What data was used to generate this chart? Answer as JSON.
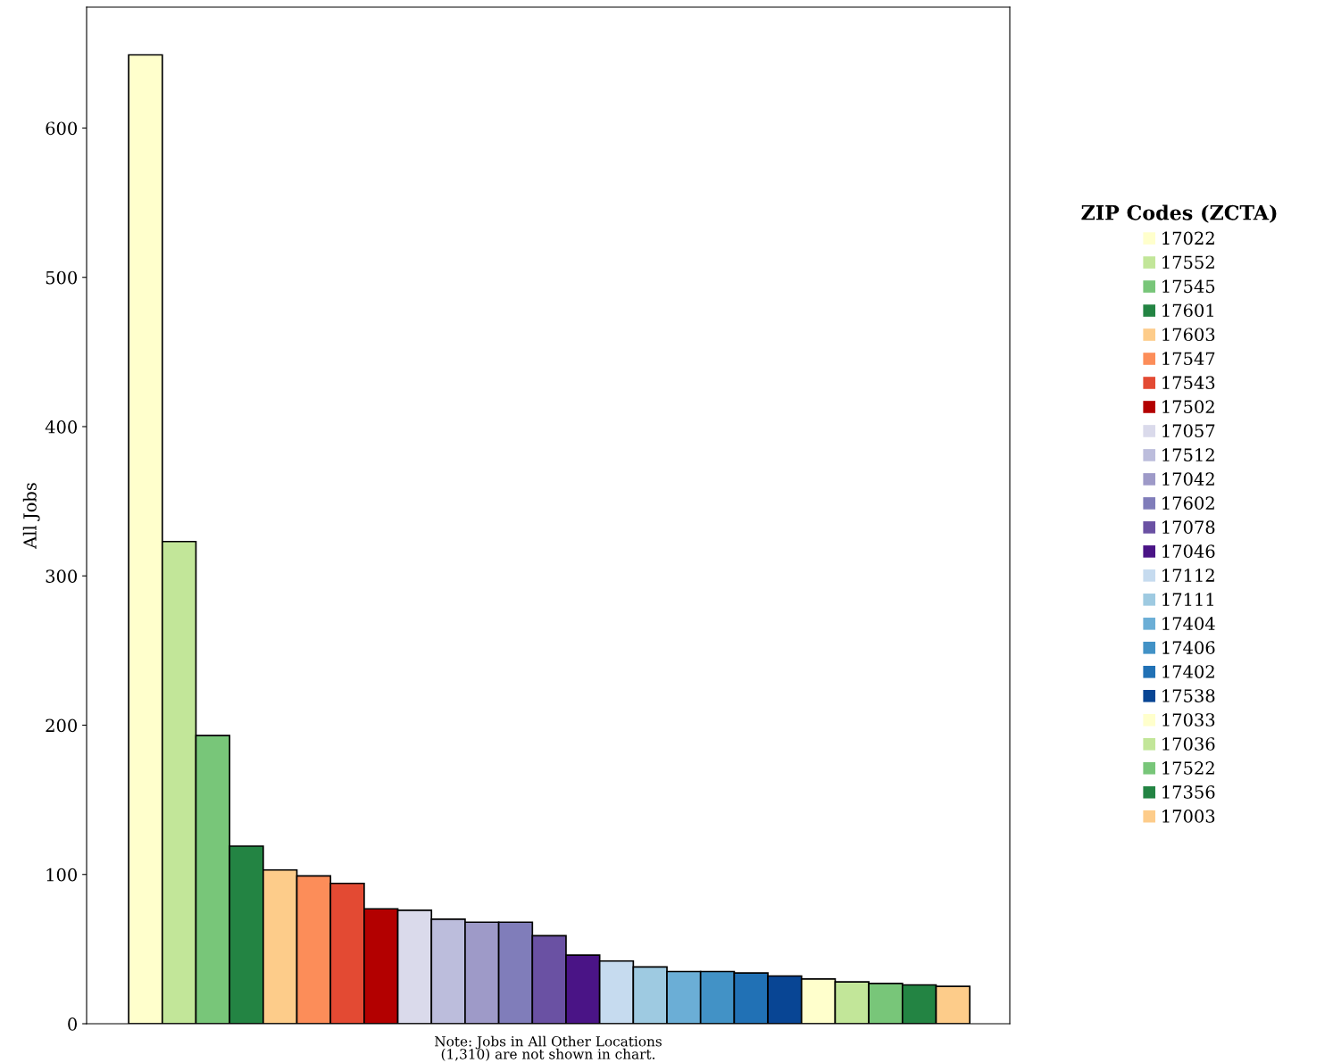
{
  "chart_data": {
    "type": "bar",
    "stacked": true,
    "ylabel": "All Jobs",
    "legend_title": "ZIP Codes (ZCTA)",
    "legend": "right",
    "categories": [
      null,
      null,
      null,
      null,
      null,
      null,
      null,
      null,
      null,
      null,
      null,
      null,
      null,
      null,
      null,
      null,
      null,
      null,
      null,
      null,
      null,
      null,
      null,
      null,
      null
    ],
    "ylim": [
      0,
      681
    ],
    "yticks": [
      0,
      100,
      200,
      300,
      400,
      500,
      600
    ],
    "grid": false,
    "tick_labels": "y",
    "annotations": [
      "Note: Jobs in All Other Locations\n(1,310) are not shown in chart."
    ],
    "series": [
      {
        "name": "17022",
        "color": "#ffffcc",
        "values": [
          649,
          null,
          null,
          null,
          null,
          null,
          null,
          null,
          null,
          null,
          null,
          null,
          null,
          null,
          null,
          null,
          null,
          null,
          null,
          null,
          null,
          null,
          null,
          null,
          null
        ]
      },
      {
        "name": "17552",
        "color": "#c2e699",
        "values": [
          null,
          323,
          null,
          null,
          null,
          null,
          null,
          null,
          null,
          null,
          null,
          null,
          null,
          null,
          null,
          null,
          null,
          null,
          null,
          null,
          null,
          null,
          null,
          null,
          null
        ]
      },
      {
        "name": "17545",
        "color": "#78c679",
        "values": [
          null,
          null,
          193,
          null,
          null,
          null,
          null,
          null,
          null,
          null,
          null,
          null,
          null,
          null,
          null,
          null,
          null,
          null,
          null,
          null,
          null,
          null,
          null,
          null,
          null
        ]
      },
      {
        "name": "17601",
        "color": "#238443",
        "values": [
          null,
          null,
          null,
          119,
          null,
          null,
          null,
          null,
          null,
          null,
          null,
          null,
          null,
          null,
          null,
          null,
          null,
          null,
          null,
          null,
          null,
          null,
          null,
          null,
          null
        ]
      },
      {
        "name": "17603",
        "color": "#fdcc8a",
        "values": [
          null,
          null,
          null,
          null,
          103,
          null,
          null,
          null,
          null,
          null,
          null,
          null,
          null,
          null,
          null,
          null,
          null,
          null,
          null,
          null,
          null,
          null,
          null,
          null,
          null
        ]
      },
      {
        "name": "17547",
        "color": "#fc8d59",
        "values": [
          null,
          null,
          null,
          null,
          null,
          99,
          null,
          null,
          null,
          null,
          null,
          null,
          null,
          null,
          null,
          null,
          null,
          null,
          null,
          null,
          null,
          null,
          null,
          null,
          null
        ]
      },
      {
        "name": "17543",
        "color": "#e34a33",
        "values": [
          null,
          null,
          null,
          null,
          null,
          null,
          94,
          null,
          null,
          null,
          null,
          null,
          null,
          null,
          null,
          null,
          null,
          null,
          null,
          null,
          null,
          null,
          null,
          null,
          null
        ]
      },
      {
        "name": "17502",
        "color": "#b30000",
        "values": [
          null,
          null,
          null,
          null,
          null,
          null,
          null,
          77,
          null,
          null,
          null,
          null,
          null,
          null,
          null,
          null,
          null,
          null,
          null,
          null,
          null,
          null,
          null,
          null,
          null
        ]
      },
      {
        "name": "17057",
        "color": "#dadaeb",
        "values": [
          null,
          null,
          null,
          null,
          null,
          null,
          null,
          null,
          76,
          null,
          null,
          null,
          null,
          null,
          null,
          null,
          null,
          null,
          null,
          null,
          null,
          null,
          null,
          null,
          null
        ]
      },
      {
        "name": "17512",
        "color": "#bcbddc",
        "values": [
          null,
          null,
          null,
          null,
          null,
          null,
          null,
          null,
          null,
          70,
          null,
          null,
          null,
          null,
          null,
          null,
          null,
          null,
          null,
          null,
          null,
          null,
          null,
          null,
          null
        ]
      },
      {
        "name": "17042",
        "color": "#9e9ac8",
        "values": [
          null,
          null,
          null,
          null,
          null,
          null,
          null,
          null,
          null,
          null,
          68,
          null,
          null,
          null,
          null,
          null,
          null,
          null,
          null,
          null,
          null,
          null,
          null,
          null,
          null
        ]
      },
      {
        "name": "17602",
        "color": "#807dba",
        "values": [
          null,
          null,
          null,
          null,
          null,
          null,
          null,
          null,
          null,
          null,
          null,
          68,
          null,
          null,
          null,
          null,
          null,
          null,
          null,
          null,
          null,
          null,
          null,
          null,
          null
        ]
      },
      {
        "name": "17078",
        "color": "#6a51a3",
        "values": [
          null,
          null,
          null,
          null,
          null,
          null,
          null,
          null,
          null,
          null,
          null,
          null,
          59,
          null,
          null,
          null,
          null,
          null,
          null,
          null,
          null,
          null,
          null,
          null,
          null
        ]
      },
      {
        "name": "17046",
        "color": "#4a1486",
        "values": [
          null,
          null,
          null,
          null,
          null,
          null,
          null,
          null,
          null,
          null,
          null,
          null,
          null,
          46,
          null,
          null,
          null,
          null,
          null,
          null,
          null,
          null,
          null,
          null,
          null
        ]
      },
      {
        "name": "17112",
        "color": "#c6dbef",
        "values": [
          null,
          null,
          null,
          null,
          null,
          null,
          null,
          null,
          null,
          null,
          null,
          null,
          null,
          null,
          42,
          null,
          null,
          null,
          null,
          null,
          null,
          null,
          null,
          null,
          null
        ]
      },
      {
        "name": "17111",
        "color": "#9ecae1",
        "values": [
          null,
          null,
          null,
          null,
          null,
          null,
          null,
          null,
          null,
          null,
          null,
          null,
          null,
          null,
          null,
          38,
          null,
          null,
          null,
          null,
          null,
          null,
          null,
          null,
          null
        ]
      },
      {
        "name": "17404",
        "color": "#6baed6",
        "values": [
          null,
          null,
          null,
          null,
          null,
          null,
          null,
          null,
          null,
          null,
          null,
          null,
          null,
          null,
          null,
          null,
          35,
          null,
          null,
          null,
          null,
          null,
          null,
          null,
          null
        ]
      },
      {
        "name": "17406",
        "color": "#4292c6",
        "values": [
          null,
          null,
          null,
          null,
          null,
          null,
          null,
          null,
          null,
          null,
          null,
          null,
          null,
          null,
          null,
          null,
          null,
          35,
          null,
          null,
          null,
          null,
          null,
          null,
          null
        ]
      },
      {
        "name": "17402",
        "color": "#2171b5",
        "values": [
          null,
          null,
          null,
          null,
          null,
          null,
          null,
          null,
          null,
          null,
          null,
          null,
          null,
          null,
          null,
          null,
          null,
          null,
          34,
          null,
          null,
          null,
          null,
          null,
          null
        ]
      },
      {
        "name": "17538",
        "color": "#084594",
        "values": [
          null,
          null,
          null,
          null,
          null,
          null,
          null,
          null,
          null,
          null,
          null,
          null,
          null,
          null,
          null,
          null,
          null,
          null,
          null,
          32,
          null,
          null,
          null,
          null,
          null
        ]
      },
      {
        "name": "17033",
        "color": "#ffffcc",
        "values": [
          null,
          null,
          null,
          null,
          null,
          null,
          null,
          null,
          null,
          null,
          null,
          null,
          null,
          null,
          null,
          null,
          null,
          null,
          null,
          null,
          30,
          null,
          null,
          null,
          null
        ]
      },
      {
        "name": "17036",
        "color": "#c2e699",
        "values": [
          null,
          null,
          null,
          null,
          null,
          null,
          null,
          null,
          null,
          null,
          null,
          null,
          null,
          null,
          null,
          null,
          null,
          null,
          null,
          null,
          null,
          28,
          null,
          null,
          null
        ]
      },
      {
        "name": "17522",
        "color": "#78c679",
        "values": [
          null,
          null,
          null,
          null,
          null,
          null,
          null,
          null,
          null,
          null,
          null,
          null,
          null,
          null,
          null,
          null,
          null,
          null,
          null,
          null,
          null,
          null,
          27,
          null,
          null
        ]
      },
      {
        "name": "17356",
        "color": "#238443",
        "values": [
          null,
          null,
          null,
          null,
          null,
          null,
          null,
          null,
          null,
          null,
          null,
          null,
          null,
          null,
          null,
          null,
          null,
          null,
          null,
          null,
          null,
          null,
          null,
          26,
          null
        ]
      },
      {
        "name": "17003",
        "color": "#fdcc8a",
        "values": [
          null,
          null,
          null,
          null,
          null,
          null,
          null,
          null,
          null,
          null,
          null,
          null,
          null,
          null,
          null,
          null,
          null,
          null,
          null,
          null,
          null,
          null,
          null,
          null,
          25
        ]
      }
    ]
  }
}
